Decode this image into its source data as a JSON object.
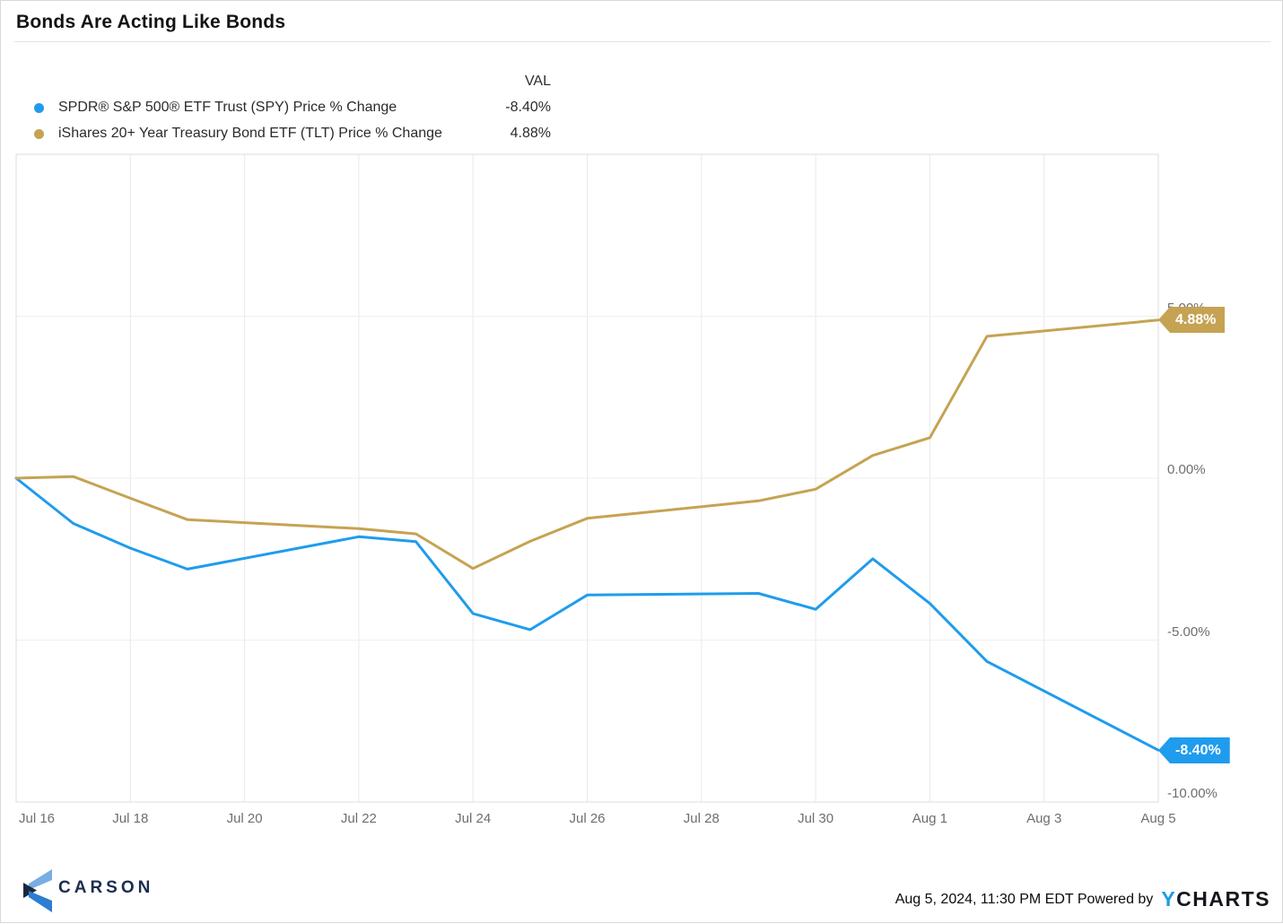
{
  "title": "Bonds Are Acting Like Bonds",
  "legend": {
    "val_header": "VAL",
    "items": [
      {
        "label": "SPDR® S&P 500® ETF Trust (SPY) Price % Change",
        "value": "-8.40%",
        "color": "#1f9ced"
      },
      {
        "label": "iShares 20+ Year Treasury Bond ETF (TLT) Price % Change",
        "value": "4.88%",
        "color": "#c5a353"
      }
    ]
  },
  "chart_data": {
    "type": "line",
    "title": "Bonds Are Acting Like Bonds",
    "xlabel": "",
    "ylabel": "Price % Change",
    "grid": true,
    "legend_position": "top-left",
    "x_axis": {
      "day_span": 20,
      "ticks": [
        {
          "label": "Jul 16",
          "day": 0
        },
        {
          "label": "Jul 18",
          "day": 2
        },
        {
          "label": "Jul 20",
          "day": 4
        },
        {
          "label": "Jul 22",
          "day": 6
        },
        {
          "label": "Jul 24",
          "day": 8
        },
        {
          "label": "Jul 26",
          "day": 10
        },
        {
          "label": "Jul 28",
          "day": 12
        },
        {
          "label": "Jul 30",
          "day": 14
        },
        {
          "label": "Aug 1",
          "day": 16
        },
        {
          "label": "Aug 3",
          "day": 18
        },
        {
          "label": "Aug 5",
          "day": 20
        }
      ]
    },
    "y_axis": {
      "unit": "%",
      "min": -10,
      "max": 10,
      "ticks": [
        {
          "label": "5.00%",
          "value": 5
        },
        {
          "label": "0.00%",
          "value": 0
        },
        {
          "label": "-5.00%",
          "value": -5
        },
        {
          "label": "-10.00%",
          "value": -10
        }
      ]
    },
    "series": [
      {
        "id": "spy",
        "name": "SPDR® S&P 500® ETF Trust (SPY) Price % Change",
        "color": "#1f9ced",
        "end_label": "-8.40%",
        "points": [
          {
            "date": "Jul 16",
            "day": 0,
            "value": 0.0
          },
          {
            "date": "Jul 17",
            "day": 1,
            "value": -1.4
          },
          {
            "date": "Jul 18",
            "day": 2,
            "value": -2.16
          },
          {
            "date": "Jul 19",
            "day": 3,
            "value": -2.81
          },
          {
            "date": "Jul 22",
            "day": 6,
            "value": -1.81
          },
          {
            "date": "Jul 23",
            "day": 7,
            "value": -1.96
          },
          {
            "date": "Jul 24",
            "day": 8,
            "value": -4.18
          },
          {
            "date": "Jul 25",
            "day": 9,
            "value": -4.68
          },
          {
            "date": "Jul 26",
            "day": 10,
            "value": -3.61
          },
          {
            "date": "Jul 29",
            "day": 13,
            "value": -3.56
          },
          {
            "date": "Jul 30",
            "day": 14,
            "value": -4.05
          },
          {
            "date": "Jul 31",
            "day": 15,
            "value": -2.49
          },
          {
            "date": "Aug 1",
            "day": 16,
            "value": -3.87
          },
          {
            "date": "Aug 2",
            "day": 17,
            "value": -5.66
          },
          {
            "date": "Aug 5",
            "day": 20,
            "value": -8.4
          }
        ]
      },
      {
        "id": "tlt",
        "name": "iShares 20+ Year Treasury Bond ETF (TLT) Price % Change",
        "color": "#c5a353",
        "end_label": "4.88%",
        "points": [
          {
            "date": "Jul 16",
            "day": 0,
            "value": 0.0
          },
          {
            "date": "Jul 17",
            "day": 1,
            "value": 0.05
          },
          {
            "date": "Jul 18",
            "day": 2,
            "value": -0.62
          },
          {
            "date": "Jul 19",
            "day": 3,
            "value": -1.28
          },
          {
            "date": "Jul 22",
            "day": 6,
            "value": -1.56
          },
          {
            "date": "Jul 23",
            "day": 7,
            "value": -1.72
          },
          {
            "date": "Jul 24",
            "day": 8,
            "value": -2.79
          },
          {
            "date": "Jul 25",
            "day": 9,
            "value": -1.95
          },
          {
            "date": "Jul 26",
            "day": 10,
            "value": -1.24
          },
          {
            "date": "Jul 29",
            "day": 13,
            "value": -0.7
          },
          {
            "date": "Jul 30",
            "day": 14,
            "value": -0.34
          },
          {
            "date": "Jul 31",
            "day": 15,
            "value": 0.7
          },
          {
            "date": "Aug 1",
            "day": 16,
            "value": 1.25
          },
          {
            "date": "Aug 2",
            "day": 17,
            "value": 4.38
          },
          {
            "date": "Aug 5",
            "day": 20,
            "value": 4.88
          }
        ]
      }
    ]
  },
  "footer": {
    "carson_word": "CARSON",
    "timestamp": "Aug 5, 2024, 11:30 PM EDT",
    "powered_by": "Powered by",
    "ycharts_y": "Y",
    "ycharts_rest": "CHARTS"
  }
}
